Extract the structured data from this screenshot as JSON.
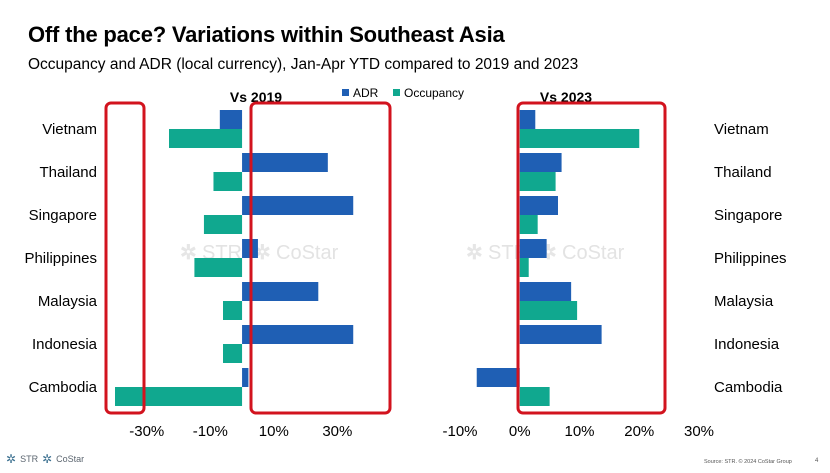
{
  "title": "Off the pace? Variations within Southeast Asia",
  "subtitle": "Occupancy and ADR (local currency), Jan-Apr YTD compared to 2019 and 2023",
  "colors": {
    "adr": "#1f5fb4",
    "occupancy": "#10a88f",
    "highlight": "#d2131e"
  },
  "watermark": {
    "brand1": "STR",
    "brand2": "CoStar"
  },
  "footer": {
    "logo1": "STR",
    "logo2": "CoStar",
    "source": "Source: STR. © 2024 CoStar Group",
    "page": "4"
  },
  "chart_data": [
    {
      "type": "bar",
      "orientation": "horizontal",
      "title": "Vs 2019",
      "categories": [
        "Vietnam",
        "Thailand",
        "Singapore",
        "Philippines",
        "Malaysia",
        "Indonesia",
        "Cambodia"
      ],
      "series": [
        {
          "name": "ADR",
          "values": [
            -7,
            27,
            35,
            5,
            24,
            35,
            2
          ]
        },
        {
          "name": "Occupancy",
          "values": [
            -23,
            -9,
            -12,
            -15,
            -6,
            -6,
            -40
          ]
        }
      ],
      "xlim": [
        -40,
        45
      ],
      "ticks": [
        -30,
        -10,
        10,
        30
      ],
      "tick_labels": [
        "-30%",
        "-10%",
        "10%",
        "30%"
      ],
      "legend": [
        "ADR",
        "Occupancy"
      ],
      "legend_position": "top"
    },
    {
      "type": "bar",
      "orientation": "horizontal",
      "title": "Vs 2023",
      "categories": [
        "Vietnam",
        "Thailand",
        "Singapore",
        "Philippines",
        "Malaysia",
        "Indonesia",
        "Cambodia"
      ],
      "series": [
        {
          "name": "ADR",
          "values": [
            2.6,
            7,
            6.4,
            4.5,
            8.6,
            13.7,
            -7.2
          ]
        },
        {
          "name": "Occupancy",
          "values": [
            20,
            6,
            3,
            1.5,
            9.6,
            0,
            5
          ]
        }
      ],
      "xlim": [
        -10,
        30
      ],
      "ticks": [
        -10,
        0,
        10,
        20,
        30
      ],
      "tick_labels": [
        "-10%",
        "0%",
        "10%",
        "20%",
        "30%"
      ]
    }
  ]
}
